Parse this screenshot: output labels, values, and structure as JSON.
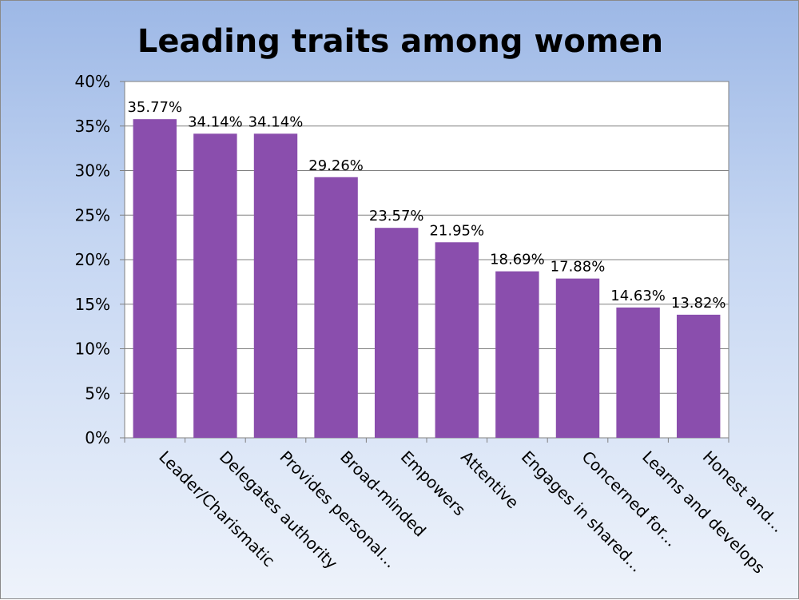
{
  "chart_data": {
    "type": "bar",
    "title": "Leading traits among women",
    "xlabel": "",
    "ylabel": "",
    "ylim": [
      0,
      40
    ],
    "yticks": [
      "0%",
      "5%",
      "10%",
      "15%",
      "20%",
      "25%",
      "30%",
      "35%",
      "40%"
    ],
    "grid": true,
    "categories": [
      "Leader/Charismatic",
      "Delegates authority",
      "Provides personal...",
      "Broad-minded",
      "Empowers",
      "Attentive",
      "Engages in shared...",
      "Concerned for...",
      "Learns and develops",
      "Honest and..."
    ],
    "values": [
      35.77,
      34.14,
      34.14,
      29.26,
      23.57,
      21.95,
      18.69,
      17.88,
      14.63,
      13.82
    ],
    "data_labels": [
      "35.77%",
      "34.14%",
      "34.14%",
      "29.26%",
      "23.57%",
      "21.95%",
      "18.69%",
      "17.88%",
      "14.63%",
      "13.82%"
    ],
    "bar_color": "#8a4ead",
    "plot_background": "#ffffff",
    "gridline_color": "#808080"
  }
}
